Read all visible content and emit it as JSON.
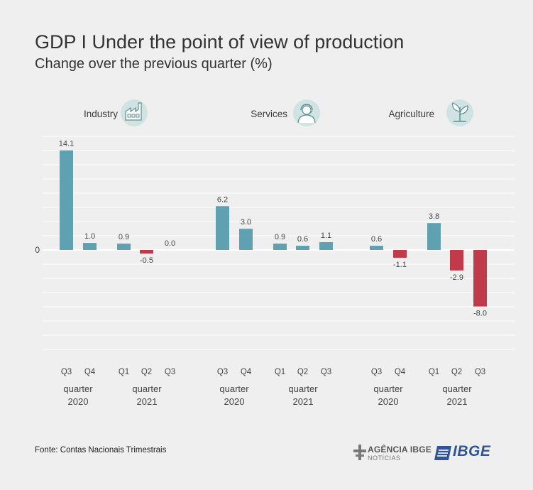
{
  "header": {
    "title": "GDP I Under the point of view of production",
    "subtitle": "Change over the previous quarter (%)"
  },
  "footer": {
    "source": "Fonte: Contas Nacionais Trimestrais",
    "agencia_top": "AGÊNCIA IBGE",
    "agencia_bottom": "NOTÍCIAS",
    "ibge_logo": "IBGE"
  },
  "colors": {
    "positive": "#5fa1b1",
    "negative": "#c03a4a",
    "grid": "#ffffff",
    "icon_bg": "#cfe3e3",
    "icon_stroke": "#5a8e92"
  },
  "chart_data": [
    {
      "type": "bar",
      "panel": "Industry",
      "icon": "factory-icon",
      "zero_label": "0",
      "categories": [
        "Q3",
        "Q4",
        "Q1",
        "Q2",
        "Q3"
      ],
      "values": [
        14.1,
        1.0,
        0.9,
        -0.5,
        0.0
      ],
      "labels": [
        "14.1",
        "1.0",
        "0.9",
        "-0.5",
        "0.0"
      ],
      "groups": [
        {
          "label": "quarter",
          "year": "2020"
        },
        {
          "label": "quarter",
          "year": "2021"
        }
      ]
    },
    {
      "type": "bar",
      "panel": "Services",
      "icon": "headset-person-icon",
      "categories": [
        "Q3",
        "Q4",
        "Q1",
        "Q2",
        "Q3"
      ],
      "values": [
        6.2,
        3.0,
        0.9,
        0.6,
        1.1
      ],
      "labels": [
        "6.2",
        "3.0",
        "0.9",
        "0.6",
        "1.1"
      ],
      "groups": [
        {
          "label": "quarter",
          "year": "2020"
        },
        {
          "label": "quarter",
          "year": "2021"
        }
      ]
    },
    {
      "type": "bar",
      "panel": "Agriculture",
      "icon": "plant-icon",
      "categories": [
        "Q3",
        "Q4",
        "Q1",
        "Q2",
        "Q3"
      ],
      "values": [
        0.6,
        -1.1,
        3.8,
        -2.9,
        -8.0
      ],
      "labels": [
        "0.6",
        "-1.1",
        "3.8",
        "-2.9",
        "-8.0"
      ],
      "groups": [
        {
          "label": "quarter",
          "year": "2020"
        },
        {
          "label": "quarter",
          "year": "2021"
        }
      ]
    }
  ]
}
